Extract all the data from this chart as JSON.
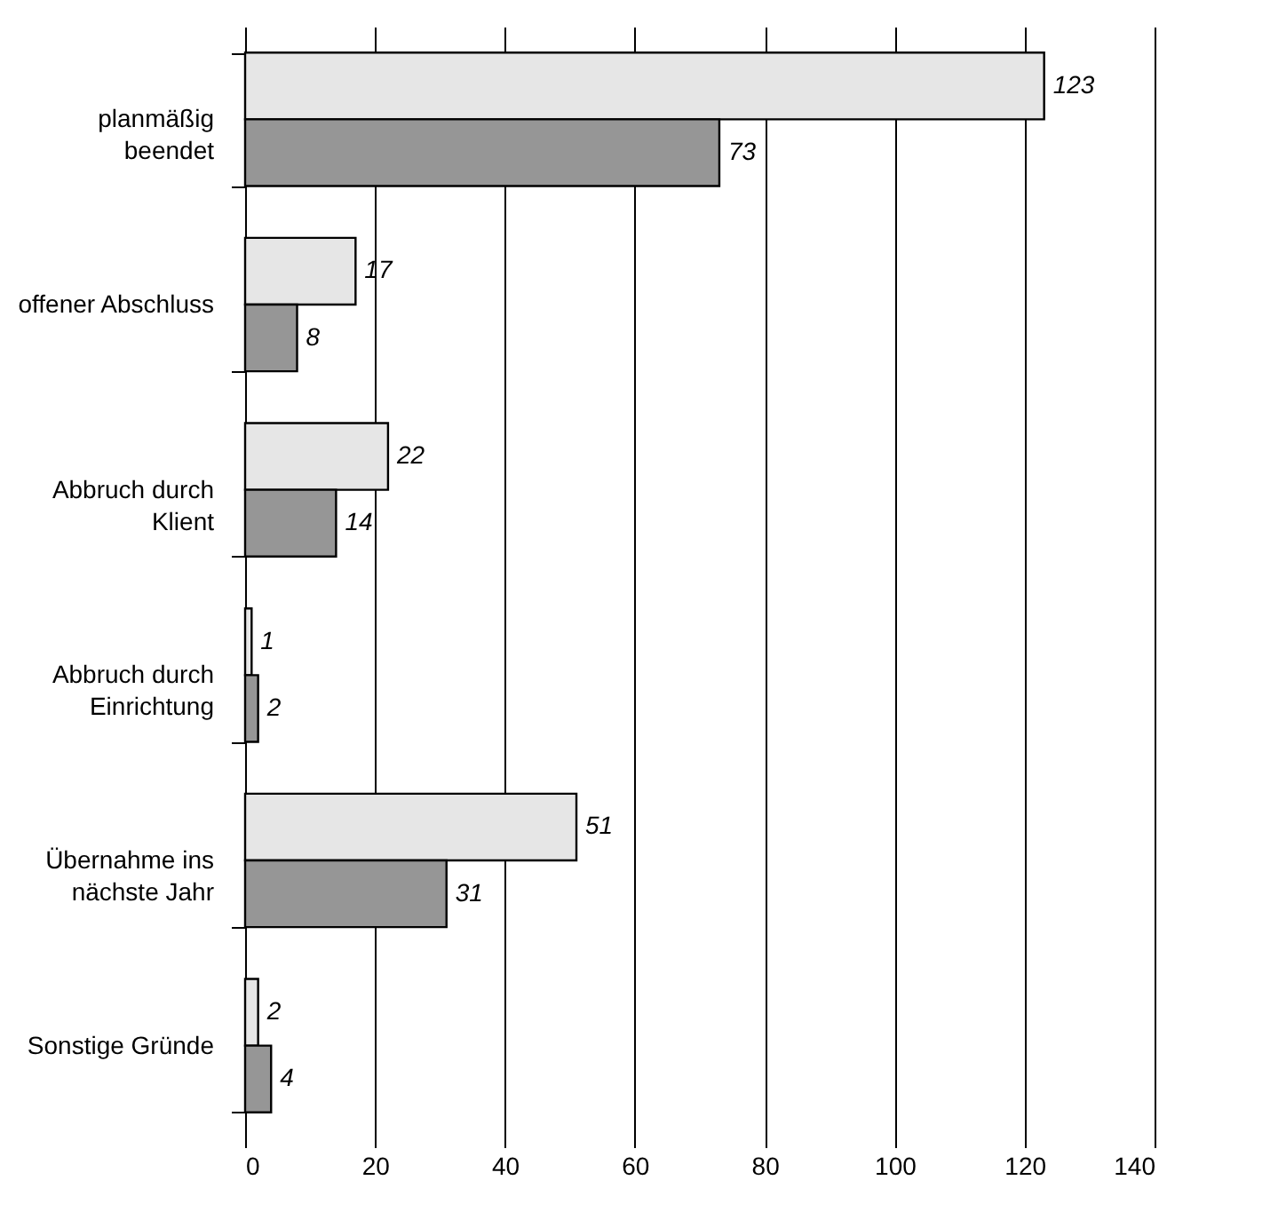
{
  "chart_data": {
    "type": "bar",
    "orientation": "horizontal",
    "categories": [
      "planmäßig\nbeendet",
      "offener Abschluss",
      "Abbruch durch\nKlient",
      "Abbruch durch\nEinrichtung",
      "Übernahme ins\nnächste Jahr",
      "Sonstige Gründe"
    ],
    "series": [
      {
        "color": "#e6e6e6",
        "values": [
          123,
          17,
          22,
          1,
          51,
          2
        ]
      },
      {
        "color": "#969696",
        "values": [
          73,
          8,
          14,
          2,
          31,
          4
        ]
      }
    ],
    "xlim": [
      0,
      140
    ],
    "xticks": [
      0,
      20,
      40,
      60,
      80,
      100,
      120,
      140
    ],
    "grid": "x",
    "data_labels": true,
    "legend": false
  }
}
